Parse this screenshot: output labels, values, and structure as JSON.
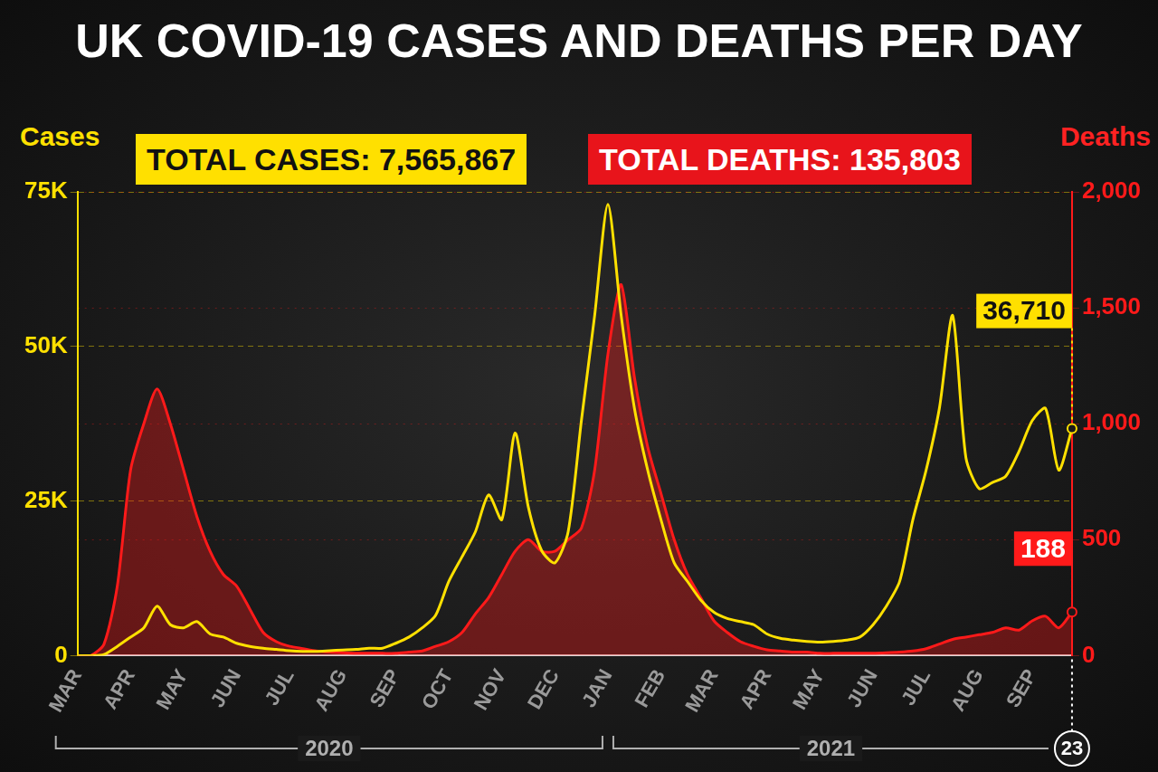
{
  "chart_data": {
    "type": "line",
    "title": "UK COVID-19 CASES AND DEATHS PER DAY",
    "totals": [
      "TOTAL CASES: 7,565,867",
      "TOTAL DEATHS: 135,803"
    ],
    "ylabel": "Cases",
    "y2label": "Deaths",
    "categories": [
      "MAR",
      null,
      null,
      null,
      "APR",
      null,
      null,
      null,
      "MAY",
      null,
      null,
      null,
      "JUN",
      null,
      null,
      null,
      "JUL",
      null,
      null,
      null,
      "AUG",
      null,
      null,
      null,
      "SEP",
      null,
      null,
      null,
      "OCT",
      null,
      null,
      null,
      "NOV",
      null,
      null,
      null,
      "DEC",
      null,
      null,
      null,
      "JAN",
      null,
      null,
      null,
      "FEB",
      null,
      null,
      null,
      "MAR",
      null,
      null,
      null,
      "APR",
      null,
      null,
      null,
      "MAY",
      null,
      null,
      null,
      "JUN",
      null,
      null,
      null,
      "JUL",
      null,
      null,
      null,
      "AUG",
      null,
      null,
      null,
      "SEP",
      null,
      null,
      null
    ],
    "years": [
      "2020",
      "2021"
    ],
    "series": [
      {
        "name": "Cases",
        "color": "#ffe000",
        "values": [
          0,
          0,
          200,
          1500,
          3000,
          4500,
          8000,
          5000,
          4500,
          5500,
          3500,
          3000,
          2000,
          1500,
          1200,
          1000,
          800,
          700,
          700,
          800,
          900,
          1000,
          1200,
          1200,
          2000,
          3000,
          4500,
          6500,
          12000,
          16000,
          20000,
          26000,
          22000,
          36000,
          24000,
          17000,
          15000,
          20000,
          38000,
          55000,
          73000,
          55000,
          40000,
          30000,
          22000,
          15000,
          12000,
          9000,
          7000,
          6000,
          5500,
          5000,
          3500,
          2800,
          2500,
          2300,
          2200,
          2300,
          2500,
          3000,
          5000,
          8000,
          12000,
          22000,
          30000,
          40000,
          55000,
          32000,
          27000,
          28000,
          29000,
          33000,
          38000,
          40000,
          30000,
          36710
        ]
      },
      {
        "name": "Deaths",
        "color": "#ff1a1a",
        "axis": "y2",
        "values": [
          0,
          0,
          50,
          300,
          800,
          1000,
          1150,
          1000,
          800,
          600,
          450,
          350,
          300,
          200,
          100,
          60,
          40,
          30,
          20,
          15,
          12,
          10,
          10,
          10,
          10,
          15,
          20,
          40,
          60,
          100,
          180,
          250,
          350,
          450,
          500,
          450,
          450,
          500,
          550,
          800,
          1300,
          1600,
          1200,
          900,
          700,
          500,
          350,
          250,
          150,
          100,
          60,
          40,
          25,
          20,
          15,
          15,
          10,
          10,
          10,
          10,
          10,
          12,
          15,
          20,
          30,
          50,
          70,
          80,
          90,
          100,
          120,
          110,
          150,
          170,
          120,
          188
        ]
      }
    ],
    "annotations": [
      {
        "text": "36,710",
        "series": "Cases"
      },
      {
        "text": "188",
        "series": "Deaths"
      },
      {
        "text": "23"
      }
    ],
    "ylim": [
      0,
      75000
    ],
    "yticks": [
      0,
      {
        "value": 25000,
        "label": "25K"
      },
      {
        "value": 50000,
        "label": "50K"
      },
      {
        "value": 75000,
        "label": "75K"
      }
    ],
    "y2lim": [
      0,
      2000
    ],
    "y2ticks": [
      0,
      500,
      {
        "value": 1000,
        "label": "1,000"
      },
      {
        "value": 1500,
        "label": "1,500"
      },
      {
        "value": 2000,
        "label": "2,000"
      }
    ],
    "grid": true
  }
}
